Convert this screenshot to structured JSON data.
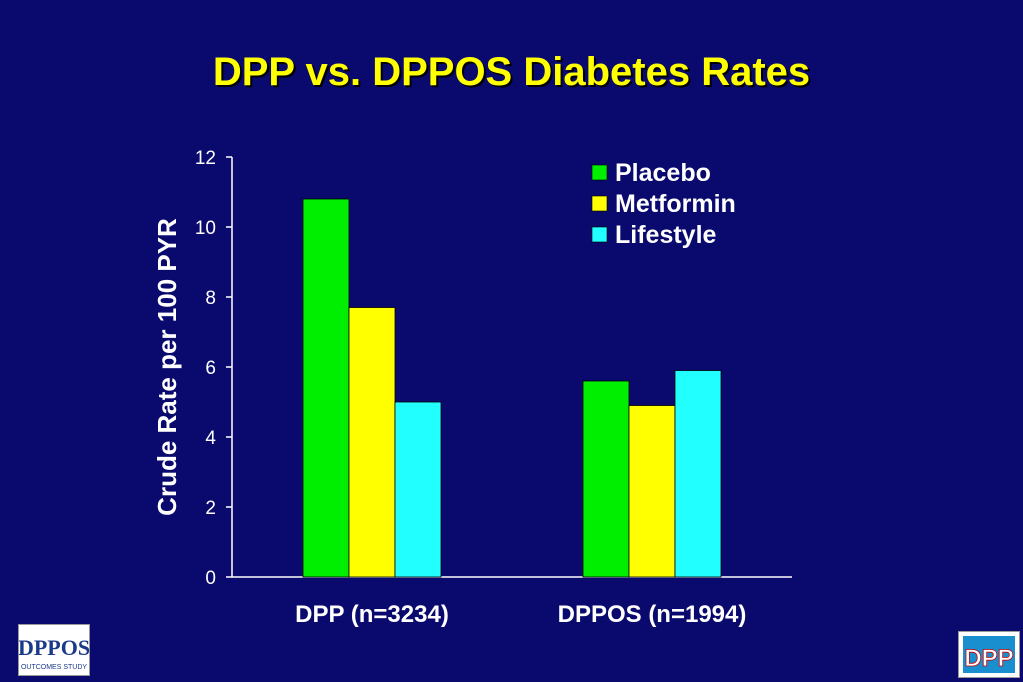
{
  "title": "DPP vs. DPPOS Diabetes Rates",
  "logos": {
    "left_text": "DPPOS",
    "left_subtext": "OUTCOMES STUDY",
    "right_text": "DPP"
  },
  "chart_data": {
    "type": "bar",
    "title": "DPP vs. DPPOS Diabetes Rates",
    "xlabel": "",
    "ylabel": "Crude Rate per 100 PYR",
    "ylim": [
      0,
      12
    ],
    "yticks": [
      0,
      2,
      4,
      6,
      8,
      10,
      12
    ],
    "grid": false,
    "legend_position": "top-right",
    "categories": [
      "DPP (n=3234)",
      "DPPOS (n=1994)"
    ],
    "series": [
      {
        "name": "Placebo",
        "values": [
          10.8,
          5.6
        ],
        "color": "#00ee00"
      },
      {
        "name": "Metformin",
        "values": [
          7.7,
          4.9
        ],
        "color": "#ffff00"
      },
      {
        "name": "Lifestyle",
        "values": [
          5.0,
          5.9
        ],
        "color": "#22ffff"
      }
    ]
  }
}
